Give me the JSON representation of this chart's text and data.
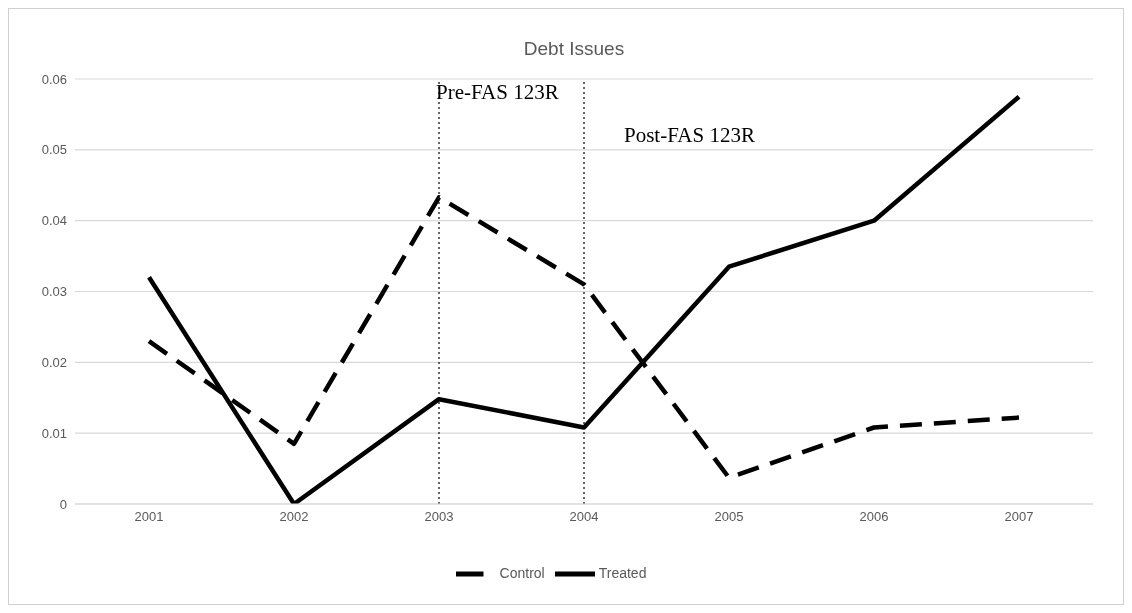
{
  "chart_data": {
    "type": "line",
    "title": "Debt Issues",
    "categories": [
      "2001",
      "2002",
      "2003",
      "2004",
      "2005",
      "2006",
      "2007"
    ],
    "series": [
      {
        "name": "Treated",
        "color": "#000000",
        "line_style": "solid",
        "values": [
          0.032,
          0,
          0.0148,
          0.0108,
          0.0335,
          0.04,
          0.0575
        ]
      },
      {
        "name": "Control",
        "color": "#000000",
        "line_style": "dashed",
        "values": [
          0.023,
          0.0085,
          0.0433,
          0.031,
          0.0037,
          0.0108,
          0.0122
        ]
      }
    ],
    "ylim": [
      0,
      0.06
    ],
    "yticks": [
      0,
      0.01,
      0.02,
      0.03,
      0.04,
      0.05,
      0.06
    ],
    "ref_lines": [
      {
        "axis": "x",
        "value": "2003",
        "label": "Pre-FAS 123R",
        "color": "#000000",
        "line_style": "dotted"
      },
      {
        "axis": "x",
        "value": "2004",
        "label": "Post-FAS 123R",
        "color": "#000000",
        "line_style": "dotted"
      }
    ],
    "grid": "y",
    "legend": "bottom",
    "marker": "none"
  }
}
